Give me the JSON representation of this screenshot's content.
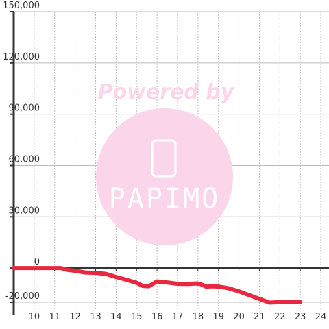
{
  "chart_data": {
    "type": "line",
    "watermark": {
      "caption": "Powered by",
      "brand": "PAPIMO"
    },
    "x": [
      9,
      10,
      11,
      11.3,
      11.6,
      12,
      12.5,
      13,
      13.5,
      14,
      14.5,
      15,
      15.3,
      15.6,
      16,
      16.5,
      17,
      17.5,
      17.9,
      18.1,
      18.4,
      18.7,
      19,
      19.5,
      20,
      20.5,
      21,
      21.5,
      22,
      22.5,
      23
    ],
    "series": [
      {
        "color": "#e8283f",
        "values": [
          0,
          0,
          0,
          0,
          -1000,
          -1600,
          -2600,
          -2800,
          -3400,
          -5200,
          -6800,
          -8600,
          -10400,
          -10600,
          -7800,
          -8400,
          -9200,
          -9300,
          -9000,
          -9200,
          -10800,
          -10600,
          -10800,
          -11800,
          -13600,
          -15800,
          -18000,
          -20200,
          -19900,
          -19900,
          -19900
        ]
      }
    ],
    "xlim": [
      9,
      24.4
    ],
    "ylim": [
      -24000,
      150000
    ],
    "xticks": [
      10,
      11,
      12,
      13,
      14,
      15,
      16,
      17,
      18,
      19,
      20,
      21,
      22,
      23,
      24
    ],
    "yticks": [
      {
        "value": -20000,
        "label": "-20,000"
      },
      0,
      {
        "value": 30000,
        "label": "30,000"
      },
      {
        "value": 60000,
        "label": "60,000"
      },
      {
        "value": 90000,
        "label": "90,000"
      },
      {
        "value": 120000,
        "label": "120,000"
      },
      {
        "value": 150000,
        "label": "150,000"
      }
    ],
    "grid": true
  }
}
